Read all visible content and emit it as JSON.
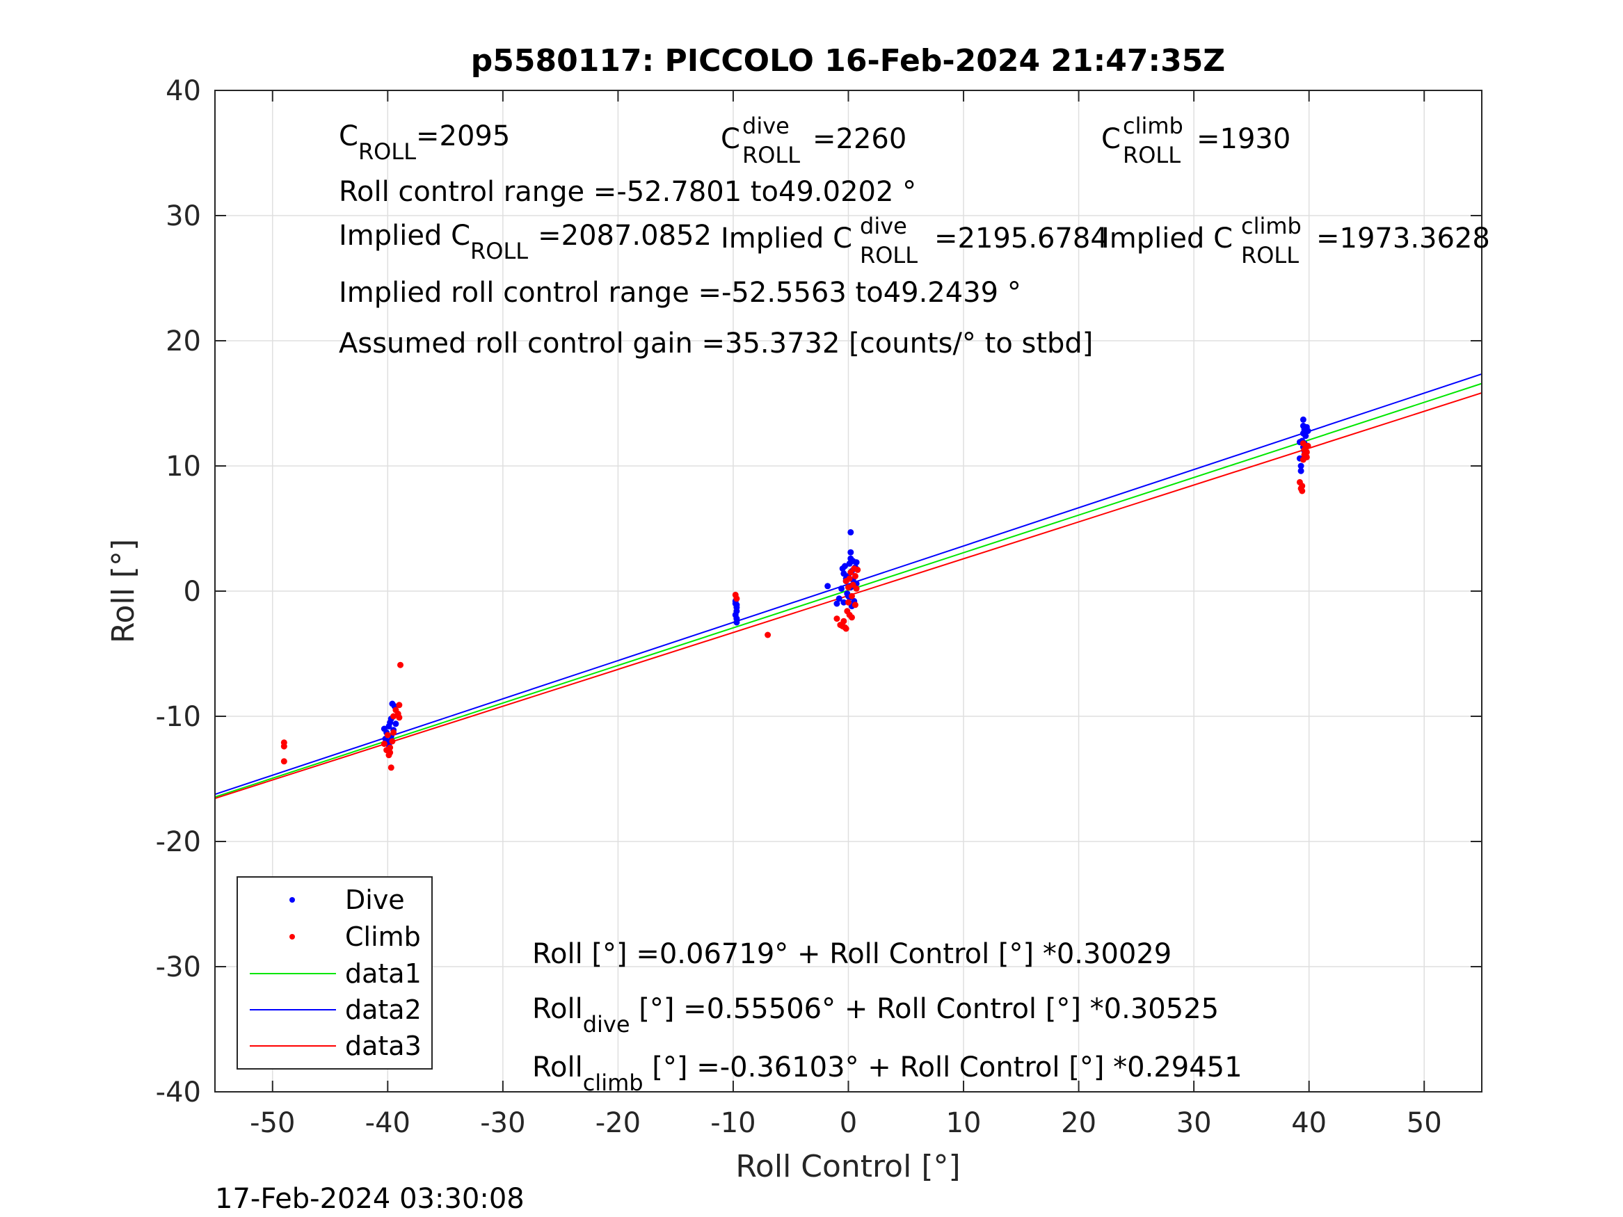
{
  "footer_timestamp": "17-Feb-2024 03:30:08",
  "chart_data": {
    "type": "scatter",
    "title": "p5580117: PICCOLO 16-Feb-2024 21:47:35Z",
    "xlabel": "Roll Control [°]",
    "ylabel": "Roll [°]",
    "xlim": [
      -55,
      55
    ],
    "ylim": [
      -40,
      40
    ],
    "xticks": [
      -50,
      -40,
      -30,
      -20,
      -10,
      0,
      10,
      20,
      30,
      40,
      50
    ],
    "yticks": [
      -40,
      -30,
      -20,
      -10,
      0,
      10,
      20,
      30,
      40
    ],
    "grid": true,
    "legend_position": "bottom-left",
    "annotations": {
      "c_roll": {
        "base": "C",
        "sub": "ROLL",
        "value": "=2095"
      },
      "c_roll_dive": {
        "base": "C",
        "sup": "dive",
        "sub": "ROLL",
        "value": "=2260"
      },
      "c_roll_climb": {
        "base": "C",
        "sup": "climb",
        "sub": "ROLL",
        "value": "=1930"
      },
      "roll_control_range": "Roll control range =-52.7801 to49.0202 °",
      "implied_c_roll": {
        "prefix": "Implied C",
        "sub": "ROLL",
        "value": "=2087.0852"
      },
      "implied_c_roll_dive": {
        "prefix": "Implied C",
        "sup": "dive",
        "sub": "ROLL",
        "value": "=2195.6784"
      },
      "implied_c_roll_climb": {
        "prefix": "Implied C",
        "sup": "climb",
        "sub": "ROLL",
        "value": "=1973.3628"
      },
      "implied_roll_control_range": "Implied roll control range =-52.5563 to49.2439 °",
      "assumed_gain": "Assumed roll control gain =35.3732 [counts/° to stbd]",
      "fit_all": "Roll [°] =0.06719° + Roll Control [°] *0.30029",
      "fit_dive": {
        "prefix": "Roll",
        "sub": "dive",
        "suffix": " [°] =0.55506° + Roll Control [°] *0.30525"
      },
      "fit_climb": {
        "prefix": "Roll",
        "sub": "climb",
        "suffix": " [°] =-0.36103° + Roll Control [°] *0.29451"
      }
    },
    "series": [
      {
        "name": "Dive",
        "kind": "scatter",
        "color": "#0000ff",
        "points": [
          [
            -40.3,
            -11.0
          ],
          [
            -40.1,
            -11.3
          ],
          [
            -39.9,
            -10.8
          ],
          [
            -39.7,
            -11.6
          ],
          [
            -40.0,
            -12.0
          ],
          [
            -39.8,
            -10.5
          ],
          [
            -39.6,
            -9.0
          ],
          [
            -39.4,
            -9.2
          ],
          [
            -40.2,
            -11.8
          ],
          [
            -39.9,
            -12.3
          ],
          [
            -39.3,
            -10.6
          ],
          [
            -39.7,
            -10.2
          ],
          [
            -39.5,
            -11.1
          ],
          [
            -9.8,
            -1.0
          ],
          [
            -9.7,
            -1.3
          ],
          [
            -9.7,
            -1.6
          ],
          [
            -9.8,
            -1.9
          ],
          [
            -9.7,
            -2.2
          ],
          [
            -9.7,
            -2.5
          ],
          [
            -9.8,
            -0.8
          ],
          [
            -9.7,
            -1.1
          ],
          [
            -1.8,
            0.4
          ],
          [
            -1.0,
            -1.0
          ],
          [
            -0.8,
            -0.6
          ],
          [
            -0.6,
            0.2
          ],
          [
            -0.5,
            1.8
          ],
          [
            -0.4,
            1.4
          ],
          [
            -0.3,
            2.0
          ],
          [
            -0.2,
            0.8
          ],
          [
            -0.1,
            -0.2
          ],
          [
            0.0,
            1.2
          ],
          [
            0.1,
            2.2
          ],
          [
            0.1,
            -0.5
          ],
          [
            0.2,
            0.3
          ],
          [
            0.2,
            2.6
          ],
          [
            0.2,
            3.1
          ],
          [
            0.2,
            4.7
          ],
          [
            0.3,
            1.6
          ],
          [
            0.3,
            -1.2
          ],
          [
            0.4,
            0.9
          ],
          [
            0.4,
            2.4
          ],
          [
            0.5,
            -0.8
          ],
          [
            0.6,
            1.9
          ],
          [
            0.7,
            0.6
          ],
          [
            0.7,
            2.3
          ],
          [
            -0.4,
            -0.9
          ],
          [
            -0.2,
            1.0
          ],
          [
            0.0,
            -0.4
          ],
          [
            39.2,
            10.6
          ],
          [
            39.3,
            10.0
          ],
          [
            39.3,
            9.6
          ],
          [
            39.4,
            12.0
          ],
          [
            39.5,
            11.5
          ],
          [
            39.5,
            12.6
          ],
          [
            39.5,
            13.2
          ],
          [
            39.5,
            13.7
          ],
          [
            39.6,
            12.9
          ],
          [
            39.6,
            11.8
          ],
          [
            39.7,
            12.4
          ],
          [
            39.8,
            13.1
          ],
          [
            39.9,
            12.8
          ],
          [
            39.6,
            11.2
          ],
          [
            39.2,
            11.9
          ]
        ]
      },
      {
        "name": "Climb",
        "kind": "scatter",
        "color": "#ff0000",
        "points": [
          [
            -49.0,
            -12.1
          ],
          [
            -49.0,
            -12.4
          ],
          [
            -49.0,
            -13.6
          ],
          [
            -40.3,
            -12.2
          ],
          [
            -40.1,
            -12.7
          ],
          [
            -39.9,
            -13.1
          ],
          [
            -39.8,
            -12.5
          ],
          [
            -39.7,
            -14.1
          ],
          [
            -39.6,
            -12.0
          ],
          [
            -39.5,
            -11.3
          ],
          [
            -39.3,
            -9.5
          ],
          [
            -39.1,
            -9.8
          ],
          [
            -39.0,
            -10.1
          ],
          [
            -39.0,
            -9.1
          ],
          [
            -38.9,
            -5.9
          ],
          [
            -39.5,
            -10.0
          ],
          [
            -39.8,
            -12.9
          ],
          [
            -40.0,
            -11.5
          ],
          [
            -9.8,
            -0.3
          ],
          [
            -9.7,
            -0.6
          ],
          [
            -7.0,
            -3.5
          ],
          [
            -1.0,
            -2.2
          ],
          [
            -0.7,
            -2.7
          ],
          [
            -0.5,
            -2.8
          ],
          [
            -0.4,
            -2.4
          ],
          [
            -0.3,
            -2.9
          ],
          [
            -0.2,
            -3.0
          ],
          [
            -0.1,
            -1.6
          ],
          [
            0.0,
            -0.9
          ],
          [
            0.0,
            0.3
          ],
          [
            0.1,
            -1.9
          ],
          [
            0.1,
            1.0
          ],
          [
            0.2,
            1.5
          ],
          [
            0.3,
            -0.4
          ],
          [
            0.4,
            0.5
          ],
          [
            0.5,
            1.8
          ],
          [
            0.6,
            -1.1
          ],
          [
            0.6,
            1.2
          ],
          [
            0.7,
            0.2
          ],
          [
            0.8,
            1.7
          ],
          [
            0.3,
            -2.1
          ],
          [
            -0.2,
            0.8
          ],
          [
            39.2,
            8.7
          ],
          [
            39.3,
            8.2
          ],
          [
            39.4,
            8.0
          ],
          [
            39.4,
            8.4
          ],
          [
            39.5,
            10.5
          ],
          [
            39.6,
            10.9
          ],
          [
            39.7,
            11.4
          ],
          [
            39.8,
            11.1
          ],
          [
            39.9,
            11.6
          ],
          [
            39.5,
            11.8
          ],
          [
            39.8,
            10.7
          ],
          [
            39.6,
            11.3
          ]
        ]
      },
      {
        "name": "data1",
        "kind": "line",
        "color": "#00e600",
        "intercept": 0.06719,
        "slope": 0.30029
      },
      {
        "name": "data2",
        "kind": "line",
        "color": "#0000ff",
        "intercept": 0.55506,
        "slope": 0.30525
      },
      {
        "name": "data3",
        "kind": "line",
        "color": "#ff0000",
        "intercept": -0.36103,
        "slope": 0.29451
      }
    ]
  }
}
